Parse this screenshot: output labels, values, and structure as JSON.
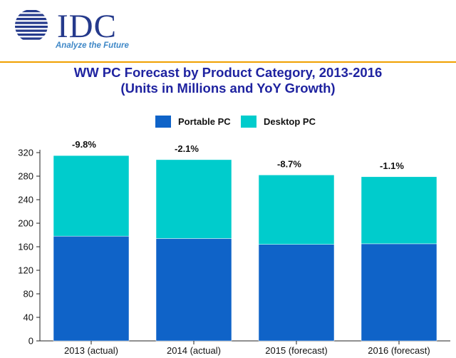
{
  "logo": {
    "brand": "IDC",
    "tagline": "Analyze the Future"
  },
  "colors": {
    "portable": "#0f63c8",
    "desktop": "#00cccc",
    "title": "#1f23a0",
    "accent_rule": "#f0a000",
    "logo_blue": "#253a8c"
  },
  "chart_data": {
    "type": "bar",
    "stacked": true,
    "title": "WW PC Forecast by Product Category, 2013-2016",
    "subtitle": "(Units in Millions and YoY Growth)",
    "categories": [
      "2013 (actual)",
      "2014 (actual)",
      "2015 (forecast)",
      "2016 (forecast)"
    ],
    "series": [
      {
        "name": "Portable PC",
        "values": [
          178,
          174,
          164,
          165
        ]
      },
      {
        "name": "Desktop PC",
        "values": [
          137,
          134,
          118,
          114
        ]
      }
    ],
    "annotations": [
      "-9.8%",
      "-2.1%",
      "-8.7%",
      "-1.1%"
    ],
    "ylim": [
      0,
      320
    ],
    "yticks": [
      0,
      40,
      80,
      120,
      160,
      200,
      240,
      280,
      320
    ],
    "xlabel": "",
    "ylabel": "",
    "legend_position": "top-center",
    "grid": false
  }
}
